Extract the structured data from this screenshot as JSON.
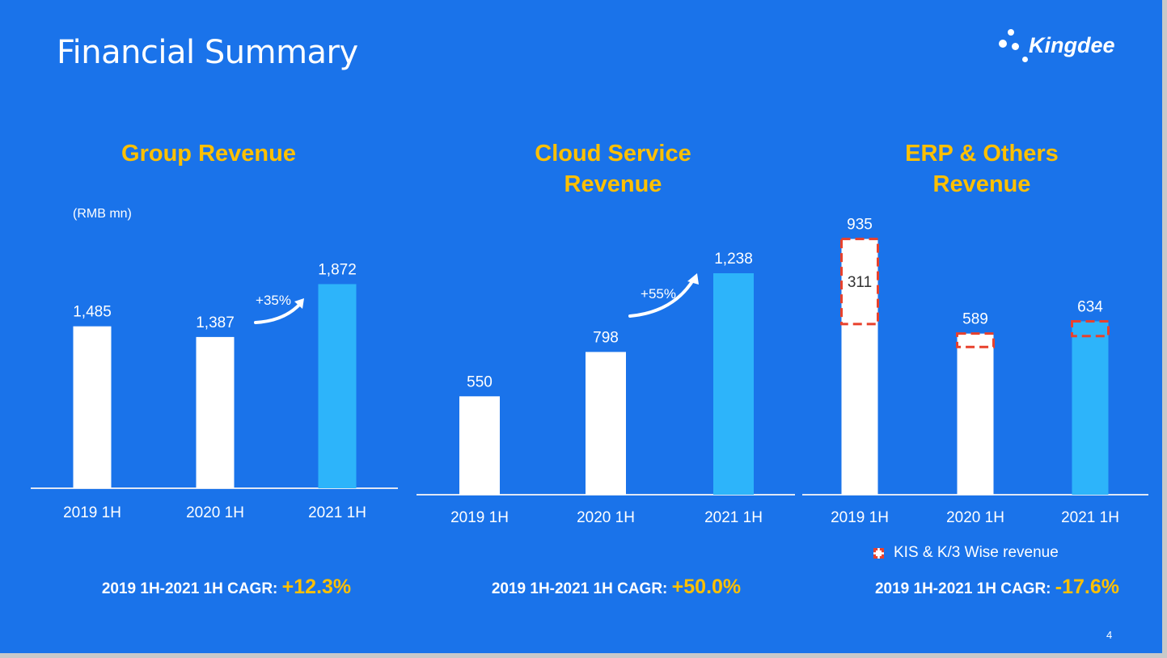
{
  "slide_title": "Financial Summary",
  "logo_text": "Kingdee",
  "page_number": "4",
  "unit_label": "(RMB mn)",
  "legend_label": "KIS & K/3 Wise revenue",
  "colors": {
    "background": "#1a73ea",
    "bar_white": "#ffffff",
    "bar_highlight": "#2db4fa",
    "accent": "#ffc000",
    "dashed_box": "#e8412c"
  },
  "chart_data": [
    {
      "type": "bar",
      "title": "Group Revenue",
      "categories": [
        "2019 1H",
        "2020 1H",
        "2021 1H"
      ],
      "values": [
        1485,
        1387,
        1872
      ],
      "value_labels": [
        "1,485",
        "1,387",
        "1,872"
      ],
      "growth_label": "+35%",
      "cagr_label": "2019 1H-2021 1H CAGR:",
      "cagr_value": "+12.3%"
    },
    {
      "type": "bar",
      "title": "Cloud Service Revenue",
      "categories": [
        "2019 1H",
        "2020 1H",
        "2021 1H"
      ],
      "values": [
        550,
        798,
        1238
      ],
      "value_labels": [
        "550",
        "798",
        "1,238"
      ],
      "growth_label": "+55%",
      "cagr_label": "2019 1H-2021 1H CAGR:",
      "cagr_value": "+50.0%"
    },
    {
      "type": "bar",
      "title": "ERP & Others Revenue",
      "categories": [
        "2019 1H",
        "2020 1H",
        "2021 1H"
      ],
      "values": [
        935,
        589,
        634
      ],
      "value_labels": [
        "935",
        "589",
        "634"
      ],
      "kis_values": [
        311,
        49,
        54
      ],
      "kis_labels": [
        "311",
        "",
        ""
      ],
      "cagr_label": "2019 1H-2021 1H CAGR:",
      "cagr_value": "-17.6%"
    }
  ]
}
